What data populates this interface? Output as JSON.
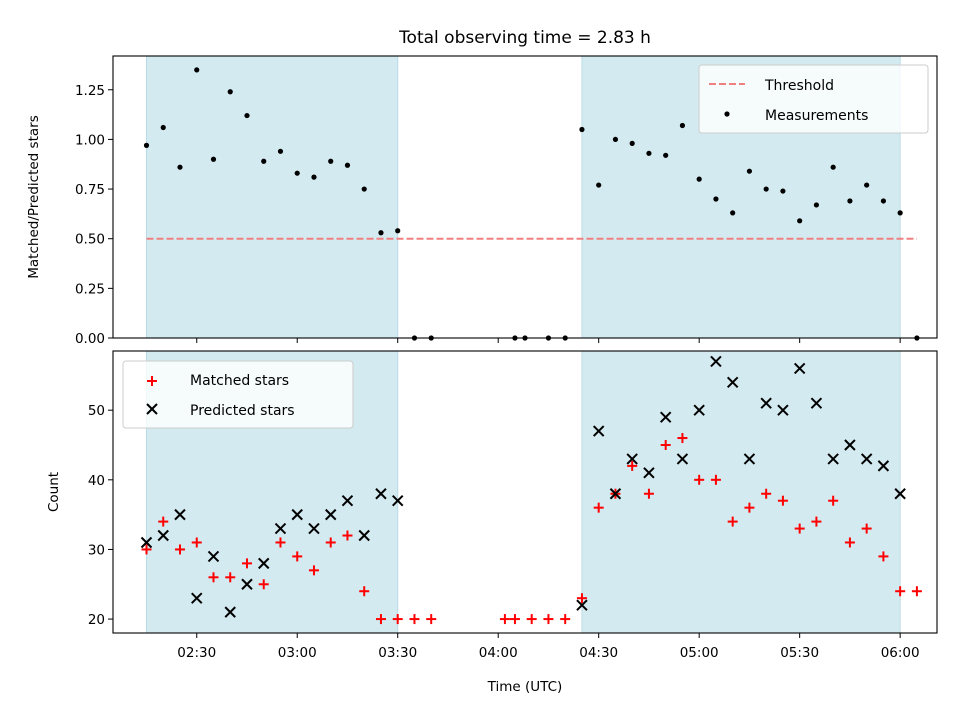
{
  "chart_data": [
    {
      "type": "scatter",
      "title": "Total observing time = 2.83 h",
      "ylabel": "Matched/Predicted stars",
      "xlabel": "",
      "ylim": [
        0,
        1.42
      ],
      "xlim": [
        "02:05",
        "06:11"
      ],
      "yticks": [
        "0.00",
        "0.25",
        "0.50",
        "0.75",
        "1.00",
        "1.25"
      ],
      "grid": false,
      "legend_position": "top-right",
      "shaded_spans": [
        [
          "02:15",
          "03:30"
        ],
        [
          "04:25",
          "06:00"
        ]
      ],
      "shade_color": "#d3eaf0",
      "threshold": {
        "name": "Threshold",
        "y": 0.5,
        "x": [
          "02:15",
          "06:05"
        ],
        "color": "#f08080",
        "style": "dashed"
      },
      "series": [
        {
          "name": "Measurements",
          "color": "#000000",
          "marker": "dot",
          "x": [
            "02:15",
            "02:20",
            "02:25",
            "02:30",
            "02:35",
            "02:40",
            "02:45",
            "02:50",
            "02:55",
            "03:00",
            "03:05",
            "03:10",
            "03:15",
            "03:20",
            "03:25",
            "03:30",
            "03:35",
            "03:40",
            "04:05",
            "04:08",
            "04:15",
            "04:20",
            "04:25",
            "04:30",
            "04:35",
            "04:40",
            "04:45",
            "04:50",
            "04:55",
            "05:00",
            "05:05",
            "05:10",
            "05:15",
            "05:20",
            "05:25",
            "05:30",
            "05:35",
            "05:40",
            "05:45",
            "05:50",
            "05:55",
            "06:00",
            "06:05"
          ],
          "y": [
            0.97,
            1.06,
            0.86,
            1.35,
            0.9,
            1.24,
            1.12,
            0.89,
            0.94,
            0.83,
            0.81,
            0.89,
            0.87,
            0.75,
            0.53,
            0.54,
            0.0,
            0.0,
            0.0,
            0.0,
            0.0,
            0.0,
            1.05,
            0.77,
            1.0,
            0.98,
            0.93,
            0.92,
            1.07,
            0.8,
            0.7,
            0.63,
            0.84,
            0.75,
            0.74,
            0.59,
            0.67,
            0.86,
            0.69,
            0.77,
            0.69,
            0.63,
            0.0
          ]
        }
      ]
    },
    {
      "type": "scatter",
      "title": "",
      "ylabel": "Count",
      "xlabel": "Time (UTC)",
      "ylim": [
        18,
        58.5
      ],
      "xlim": [
        "02:05",
        "06:11"
      ],
      "yticks": [
        "20",
        "30",
        "40",
        "50"
      ],
      "xticks": [
        "02:30",
        "03:00",
        "03:30",
        "04:00",
        "04:30",
        "05:00",
        "05:30",
        "06:00"
      ],
      "grid": false,
      "legend_position": "top-left",
      "shaded_spans": [
        [
          "02:15",
          "03:30"
        ],
        [
          "04:25",
          "06:00"
        ]
      ],
      "shade_color": "#d3eaf0",
      "series": [
        {
          "name": "Matched stars",
          "color": "#ff0000",
          "marker": "plus",
          "x": [
            "02:15",
            "02:20",
            "02:25",
            "02:30",
            "02:35",
            "02:40",
            "02:45",
            "02:50",
            "02:55",
            "03:00",
            "03:05",
            "03:10",
            "03:15",
            "03:20",
            "03:25",
            "03:30",
            "03:35",
            "03:40",
            "04:02",
            "04:05",
            "04:10",
            "04:15",
            "04:20",
            "04:25",
            "04:30",
            "04:35",
            "04:40",
            "04:45",
            "04:50",
            "04:55",
            "05:00",
            "05:05",
            "05:10",
            "05:15",
            "05:20",
            "05:25",
            "05:30",
            "05:35",
            "05:40",
            "05:45",
            "05:50",
            "05:55",
            "06:00",
            "06:05"
          ],
          "y": [
            30,
            34,
            30,
            31,
            26,
            26,
            28,
            25,
            31,
            29,
            27,
            31,
            32,
            24,
            20,
            20,
            20,
            20,
            20,
            20,
            20,
            20,
            20,
            23,
            36,
            38,
            42,
            38,
            45,
            46,
            40,
            40,
            34,
            36,
            38,
            37,
            33,
            34,
            37,
            31,
            33,
            29,
            24,
            24
          ]
        },
        {
          "name": "Predicted stars",
          "color": "#000000",
          "marker": "x",
          "x": [
            "02:15",
            "02:20",
            "02:25",
            "02:30",
            "02:35",
            "02:40",
            "02:45",
            "02:50",
            "02:55",
            "03:00",
            "03:05",
            "03:10",
            "03:15",
            "03:20",
            "03:25",
            "03:30",
            "04:25",
            "04:30",
            "04:35",
            "04:40",
            "04:45",
            "04:50",
            "04:55",
            "05:00",
            "05:05",
            "05:10",
            "05:15",
            "05:20",
            "05:25",
            "05:30",
            "05:35",
            "05:40",
            "05:45",
            "05:50",
            "05:55",
            "06:00"
          ],
          "y": [
            31,
            32,
            35,
            23,
            29,
            21,
            25,
            28,
            33,
            35,
            33,
            35,
            37,
            32,
            38,
            37,
            22,
            47,
            38,
            43,
            41,
            49,
            43,
            50,
            57,
            54,
            43,
            51,
            50,
            56,
            51,
            43,
            45,
            43,
            42,
            38
          ]
        }
      ]
    }
  ]
}
